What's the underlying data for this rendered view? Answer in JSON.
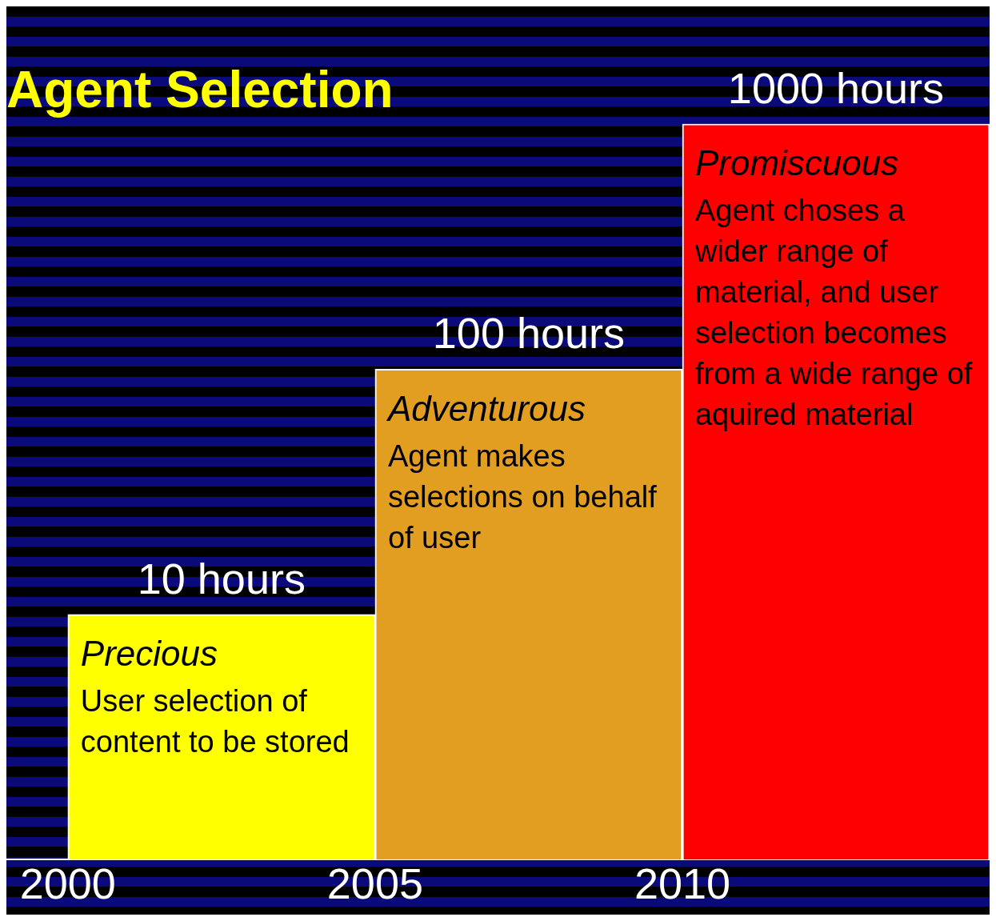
{
  "chart_data": {
    "type": "bar",
    "title": "Agent Selection",
    "log": "y",
    "ylim": [
      1,
      1000
    ],
    "tick_labels": "x",
    "x": [
      2002.5,
      2007.5,
      2012.5
    ],
    "xlim": [
      1999,
      2015
    ],
    "xticks": [
      2000,
      2005,
      2010
    ],
    "values": [
      10,
      100,
      1000
    ],
    "colors": [
      "#ffff00",
      "#e29e20",
      "#ff0000"
    ],
    "value_labels": [
      "10 hours",
      "100 hours",
      "1000 hours"
    ],
    "annotations": [
      {
        "text": "Precious",
        "x": 2002.5,
        "y": 10
      },
      {
        "text": "User selection of content to be stored",
        "x": 2002.5,
        "y": 10
      },
      {
        "text": "Adventurous",
        "x": 2007.5,
        "y": 100
      },
      {
        "text": "Agent makes selections on behalf of user",
        "x": 2007.5,
        "y": 100
      },
      {
        "text": "Promiscuous",
        "x": 2012.5,
        "y": 1000
      },
      {
        "text": "Agent choses a wider range of material, and user selection becomes from a wide range of aquired material",
        "x": 2012.5,
        "y": 1000
      }
    ],
    "grid": false,
    "legend": false
  }
}
